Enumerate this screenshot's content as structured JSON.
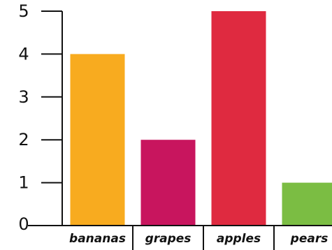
{
  "chart_data": {
    "type": "bar",
    "categories": [
      "bananas",
      "grapes",
      "apples",
      "pears"
    ],
    "values": [
      4,
      2,
      5,
      1
    ],
    "colors": [
      "#f8ab1f",
      "#c8155e",
      "#df2a40",
      "#7bbd43"
    ],
    "yticks": [
      "0",
      "1",
      "2",
      "3",
      "4",
      "5"
    ],
    "ylim": [
      0,
      5
    ],
    "title": "",
    "xlabel": "",
    "ylabel": "",
    "grid": false,
    "legend": "none"
  }
}
